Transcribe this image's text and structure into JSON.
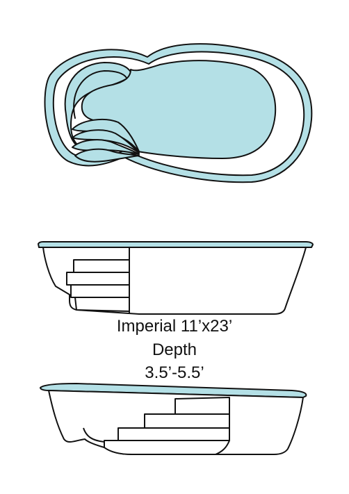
{
  "model": {
    "name": "Imperial 11’x23’",
    "depth_label": "Depth",
    "depth_range": "3.5’-5.5’"
  },
  "colors": {
    "water": "#b4e0e6",
    "outline": "#111111",
    "background": "#ffffff"
  }
}
